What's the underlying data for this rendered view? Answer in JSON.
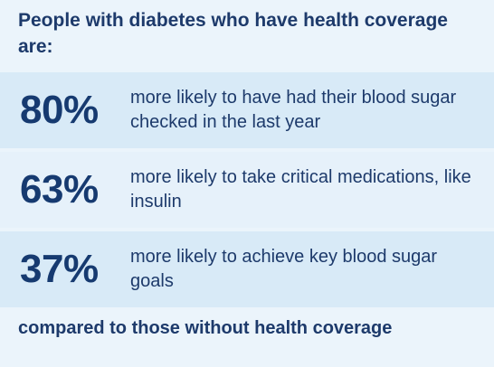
{
  "heading": "People with diabetes who have health coverage are:",
  "stats": [
    {
      "value": "80%",
      "text": "more likely to have had their blood sugar checked in the last year"
    },
    {
      "value": "63%",
      "text": "more likely to take critical medications, like insulin"
    },
    {
      "value": "37%",
      "text": "more likely to achieve key blood sugar goals"
    }
  ],
  "footer": "compared to those without health coverage",
  "colors": {
    "background": "#ebf4fb",
    "row_background": "#d8eaf7",
    "row_background_alt": "#e6f1fa",
    "text": "#1d3a6b"
  }
}
